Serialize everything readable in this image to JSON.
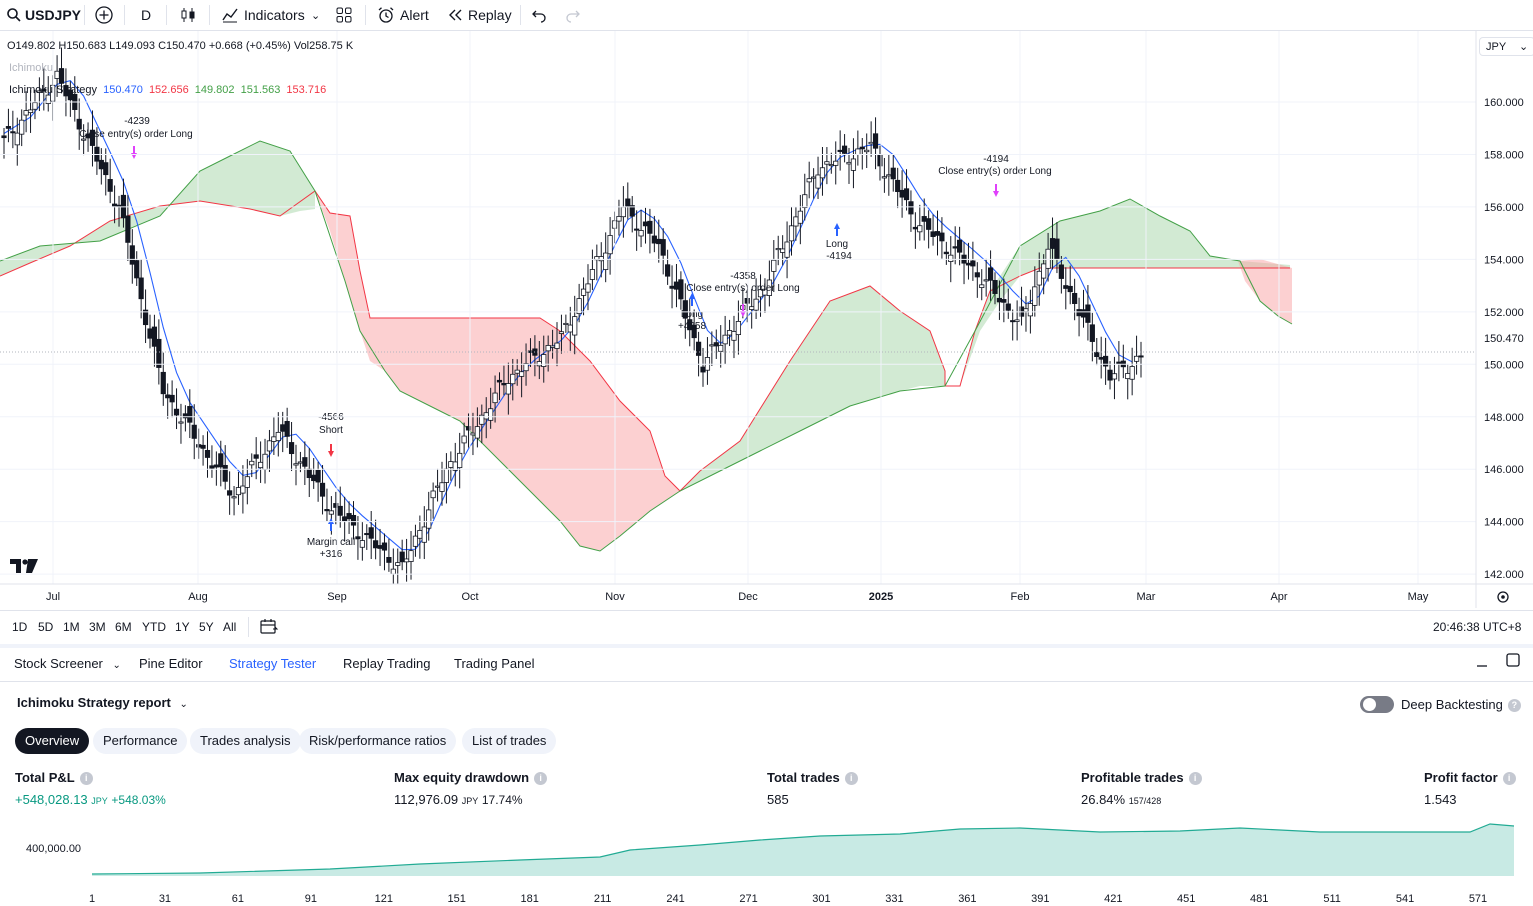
{
  "toolbar": {
    "symbol": "USDJPY",
    "interval": "D",
    "indicators_label": "Indicators",
    "alert_label": "Alert",
    "replay_label": "Replay"
  },
  "legend": {
    "ohlc": "O149.802 H150.683 L149.093 C150.470 +0.668 (+0.45%) Vol258.75 K",
    "ichimoku_faded": "Ichimoku",
    "strategy_name": "Ichimoku Strategy",
    "val1": "150.470",
    "val2": "152.656",
    "val3": "149.802",
    "val4": "151.563",
    "val5": "153.716",
    "currency": "JPY"
  },
  "price_axis": {
    "ticks": [
      "160.000",
      "158.000",
      "156.000",
      "154.000",
      "152.000",
      "150.000",
      "148.000",
      "146.000",
      "144.000",
      "142.000"
    ],
    "current_price": "150.470"
  },
  "time_axis": {
    "ticks": [
      "Jul",
      "Aug",
      "Sep",
      "Oct",
      "Nov",
      "Dec",
      "2025",
      "Feb",
      "Mar",
      "Apr",
      "May"
    ]
  },
  "chart_annotations": {
    "a1_value": "-4239",
    "a1_text": "Close entry(s) order Long",
    "a2_value": "-4566",
    "a2_text": "Short",
    "a3_text": "Margin call",
    "a3_value": "+316",
    "a4_text": "Long",
    "a4_value": "+4358",
    "a5_value": "-4358",
    "a5_text": "Close entry(s) order Long",
    "a6_text": "Long",
    "a6_value": "-4194",
    "a7_value": "-4194",
    "a7_text": "Close entry(s) order Long"
  },
  "range_bar": {
    "ranges": [
      "1D",
      "5D",
      "1M",
      "3M",
      "6M",
      "YTD",
      "1Y",
      "5Y",
      "All"
    ],
    "clock": "20:46:38 UTC+8"
  },
  "bottom_tabs": [
    "Stock Screener",
    "Pine Editor",
    "Strategy Tester",
    "Replay Trading",
    "Trading Panel"
  ],
  "report": {
    "title": "Ichimoku Strategy report",
    "deep_backtesting": "Deep Backtesting",
    "subtabs": [
      "Overview",
      "Performance",
      "Trades analysis",
      "Risk/performance ratios",
      "List of trades"
    ],
    "metrics": {
      "pnl_label": "Total P&L",
      "pnl_value": "+548,028.13",
      "pnl_unit": "JPY",
      "pnl_pct": "+548.03%",
      "dd_label": "Max equity drawdown",
      "dd_value": "112,976.09",
      "dd_unit": "JPY",
      "dd_pct": "17.74%",
      "trades_label": "Total trades",
      "trades_value": "585",
      "profitable_label": "Profitable trades",
      "profitable_pct": "26.84%",
      "profitable_ratio": "157/428",
      "pf_label": "Profit factor",
      "pf_value": "1.543"
    },
    "equity_axis_label": "400,000.00",
    "equity_x_ticks": [
      "1",
      "31",
      "61",
      "91",
      "121",
      "151",
      "181",
      "211",
      "241",
      "271",
      "301",
      "331",
      "361",
      "391",
      "421",
      "451",
      "481",
      "511",
      "541",
      "571"
    ]
  },
  "colors": {
    "accent": "#2962ff",
    "up": "#089981",
    "conversion_line": "#2962ff",
    "base_line": "#f23645",
    "lagging_span": "#43a047",
    "cloud_bull": "#a5d6a7",
    "cloud_bear": "#faa1a4",
    "equity": "#22ab94"
  }
}
